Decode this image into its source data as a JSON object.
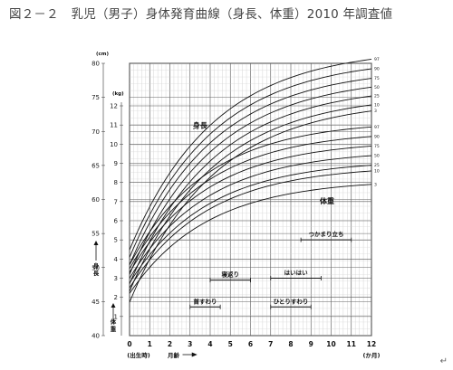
{
  "title": "図２－２　乳児（男子）身体発育曲線（身長、体重）2010 年調査値",
  "corner_mark": "↵",
  "chart_data": {
    "type": "line",
    "x_label": "月齢",
    "x_unit": "(か月)",
    "x_ticks": [
      "0",
      "1",
      "2",
      "3",
      "4",
      "5",
      "6",
      "7",
      "8",
      "9",
      "10",
      "11",
      "12"
    ],
    "x_tick_sub": "(出生時)",
    "xlim": [
      0,
      12
    ],
    "height_unit": "(cm)",
    "height_ylim": [
      40,
      80
    ],
    "height_ticks": [
      40,
      45,
      50,
      55,
      60,
      65,
      70,
      75,
      80
    ],
    "height_axis_label": "身長",
    "weight_unit": "(kg)",
    "weight_ylim": [
      1,
      12
    ],
    "weight_ticks": [
      1,
      2,
      3,
      4,
      5,
      6,
      7,
      8,
      9,
      10,
      11,
      12
    ],
    "weight_axis_label": "体重",
    "height_curve_label": "身長",
    "weight_curve_label": "体重",
    "percentiles": [
      "97",
      "90",
      "75",
      "50",
      "25",
      "10",
      "3"
    ],
    "height_series": [
      {
        "percentile": "97",
        "birth": 52.6,
        "end": 80.6
      },
      {
        "percentile": "90",
        "birth": 51.5,
        "end": 79.2
      },
      {
        "percentile": "75",
        "birth": 50.4,
        "end": 77.8
      },
      {
        "percentile": "50",
        "birth": 49.0,
        "end": 76.5
      },
      {
        "percentile": "25",
        "birth": 47.6,
        "end": 75.2
      },
      {
        "percentile": "10",
        "birth": 46.5,
        "end": 73.9
      },
      {
        "percentile": "3",
        "birth": 44.9,
        "end": 73.0
      }
    ],
    "weight_series": [
      {
        "percentile": "97",
        "birth": 3.7,
        "end": 10.9
      },
      {
        "percentile": "90",
        "birth": 3.5,
        "end": 10.4
      },
      {
        "percentile": "75",
        "birth": 3.3,
        "end": 9.9
      },
      {
        "percentile": "50",
        "birth": 3.0,
        "end": 9.4
      },
      {
        "percentile": "25",
        "birth": 2.75,
        "end": 8.9
      },
      {
        "percentile": "10",
        "birth": 2.5,
        "end": 8.6
      },
      {
        "percentile": "3",
        "birth": 2.2,
        "end": 7.9
      }
    ],
    "milestones": [
      {
        "label": "首すわり",
        "start": 3,
        "end": 4.5,
        "level": 1.5
      },
      {
        "label": "寝返り",
        "start": 4,
        "end": 6,
        "level": 2.9
      },
      {
        "label": "ひとりすわり",
        "start": 7,
        "end": 9,
        "level": 1.5
      },
      {
        "label": "はいはい",
        "start": 7,
        "end": 9.5,
        "level": 3.0
      },
      {
        "label": "つかまり立ち",
        "start": 8.5,
        "end": 11,
        "level": 5.0
      }
    ]
  }
}
